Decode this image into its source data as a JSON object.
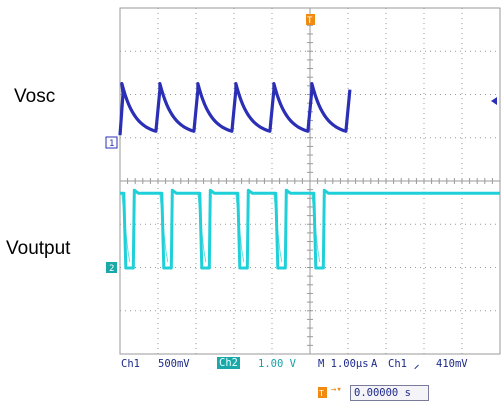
{
  "labels": {
    "vosc": "Vosc",
    "voutput": "Voutput"
  },
  "status": {
    "ch1": "Ch1",
    "ch1_scale": "500mV",
    "ch2": "Ch2",
    "ch2_scale": "1.00 V",
    "timebase": "M 1.00μs",
    "trigger_mode": "A",
    "trigger_source": "Ch1",
    "trigger_slope": "⸝",
    "trigger_level": "410mV"
  },
  "position": {
    "value": "0.00000 s",
    "arrow": "→▾"
  },
  "markers": {
    "ch1_ground": "1",
    "ch2_ground": "2",
    "trigger_top": "T"
  },
  "colors": {
    "ch1_trace": "#2a2fb5",
    "ch2_trace": "#1fd0d8",
    "grid": "#9a9a9a",
    "trigger_marker": "#f08a10",
    "text": "#1c2a8a"
  },
  "chart_data": {
    "type": "line",
    "title": "",
    "xlabel": "",
    "ylabel": "",
    "x_divisions": 10,
    "y_divisions": 8,
    "x_unit": "μs/div",
    "grid": true,
    "series": [
      {
        "name": "Vosc",
        "channel": "Ch1",
        "waveform": "sawtooth",
        "period_div": 1.0,
        "peaks_div": [
          0.05,
          1.05,
          2.05,
          3.05,
          4.05,
          5.05
        ],
        "peak_level_div": 2.35,
        "trough_level_div": 1.25,
        "ground_level_div": 1.0
      },
      {
        "name": "Voutput",
        "channel": "Ch2",
        "waveform": "pulse",
        "period_div": 1.0,
        "high_level_div": 1.3,
        "low_level_div": 0.0,
        "low_intervals_div": [
          [
            0.1,
            0.35
          ],
          [
            1.1,
            1.35
          ],
          [
            2.1,
            2.35
          ],
          [
            3.1,
            3.35
          ],
          [
            4.1,
            4.35
          ],
          [
            5.1,
            5.35
          ]
        ],
        "ground_level_div": 0.0
      }
    ]
  }
}
